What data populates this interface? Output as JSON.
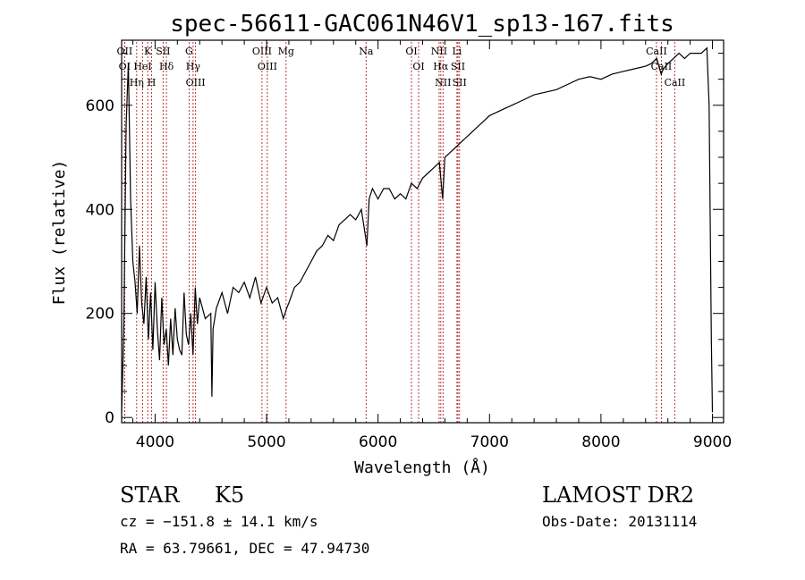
{
  "chart_data": {
    "type": "line",
    "title": "spec-56611-GAC061N46V1_sp13-167.fits",
    "xlabel": "Wavelength (Å)",
    "ylabel": "Flux (relative)",
    "xlim": [
      3700,
      9100
    ],
    "ylim": [
      -10,
      725
    ],
    "x_ticks": [
      4000,
      5000,
      6000,
      7000,
      8000,
      9000
    ],
    "y_ticks": [
      0,
      200,
      400,
      600
    ],
    "grid": false,
    "series": [
      {
        "x": [
          3700,
          3720,
          3740,
          3760,
          3780,
          3800,
          3820,
          3840,
          3860,
          3880,
          3900,
          3920,
          3940,
          3960,
          3980,
          4000,
          4020,
          4040,
          4060,
          4080,
          4100,
          4120,
          4140,
          4160,
          4180,
          4200,
          4220,
          4240,
          4260,
          4280,
          4300,
          4320,
          4340,
          4360,
          4380,
          4400,
          4450,
          4500,
          4510,
          4520,
          4550,
          4600,
          4650,
          4700,
          4750,
          4800,
          4850,
          4900,
          4950,
          5000,
          5050,
          5100,
          5150,
          5180,
          5200,
          5250,
          5300,
          5350,
          5400,
          5450,
          5500,
          5550,
          5600,
          5650,
          5700,
          5750,
          5800,
          5850,
          5900,
          5920,
          5950,
          6000,
          6050,
          6100,
          6150,
          6200,
          6250,
          6300,
          6350,
          6400,
          6450,
          6500,
          6550,
          6580,
          6600,
          6650,
          6700,
          6750,
          6800,
          6850,
          6900,
          6950,
          7000,
          7100,
          7200,
          7300,
          7400,
          7500,
          7600,
          7700,
          7800,
          7900,
          8000,
          8100,
          8200,
          8300,
          8400,
          8450,
          8500,
          8540,
          8560,
          8600,
          8650,
          8700,
          8750,
          8800,
          8850,
          8900,
          8950,
          8970,
          8990,
          9000
        ],
        "y": [
          10,
          180,
          560,
          680,
          420,
          300,
          260,
          200,
          330,
          220,
          180,
          270,
          150,
          240,
          130,
          260,
          170,
          110,
          230,
          140,
          170,
          100,
          190,
          120,
          210,
          150,
          130,
          120,
          240,
          160,
          140,
          200,
          120,
          250,
          180,
          230,
          190,
          200,
          40,
          170,
          210,
          240,
          200,
          250,
          240,
          260,
          230,
          270,
          220,
          250,
          220,
          230,
          190,
          210,
          220,
          250,
          260,
          280,
          300,
          320,
          330,
          350,
          340,
          370,
          380,
          390,
          380,
          400,
          330,
          420,
          440,
          420,
          440,
          440,
          420,
          430,
          420,
          450,
          440,
          460,
          470,
          480,
          490,
          420,
          500,
          510,
          520,
          530,
          540,
          550,
          560,
          570,
          580,
          590,
          600,
          610,
          620,
          625,
          630,
          640,
          650,
          655,
          650,
          660,
          665,
          670,
          675,
          680,
          690,
          660,
          670,
          680,
          690,
          700,
          690,
          700,
          700,
          700,
          710,
          600,
          150,
          10
        ]
      }
    ],
    "line_markers": [
      {
        "label": "OII",
        "x": 3727
      },
      {
        "label": "OI",
        "x": 3727
      },
      {
        "label": "Hη",
        "x": 3835
      },
      {
        "label": "K",
        "x": 3934
      },
      {
        "label": "H",
        "x": 3969
      },
      {
        "label": "HeI",
        "x": 3889
      },
      {
        "label": "Hδ",
        "x": 4102
      },
      {
        "label": "SII",
        "x": 4072
      },
      {
        "label": "G",
        "x": 4305
      },
      {
        "label": "OIII",
        "x": 4363
      },
      {
        "label": "Hγ",
        "x": 4341
      },
      {
        "label": "OIII",
        "x": 4959
      },
      {
        "label": "OIII",
        "x": 5007
      },
      {
        "label": "Mg",
        "x": 5175
      },
      {
        "label": "Na",
        "x": 5893
      },
      {
        "label": "OI",
        "x": 6300
      },
      {
        "label": "OI",
        "x": 6364
      },
      {
        "label": "NII",
        "x": 6548
      },
      {
        "label": "NII",
        "x": 6583
      },
      {
        "label": "Hα",
        "x": 6563
      },
      {
        "label": "Li",
        "x": 6708
      },
      {
        "label": "SII",
        "x": 6717
      },
      {
        "label": "SII",
        "x": 6731
      },
      {
        "label": "CaII",
        "x": 8498
      },
      {
        "label": "CaII",
        "x": 8542
      },
      {
        "label": "CaII",
        "x": 8662
      }
    ]
  },
  "info": {
    "object_class": "STAR",
    "subclass": "K5",
    "survey": "LAMOST DR2",
    "redshift_line": "cz = −151.8 ± 14.1 km/s",
    "obs_date": "Obs-Date: 20131114",
    "coordinates": "RA =  63.79661, DEC =  47.94730"
  },
  "colors": {
    "spectrum": "#000000",
    "line_markers": "#b22222",
    "axes": "#000000",
    "background": "#ffffff"
  }
}
